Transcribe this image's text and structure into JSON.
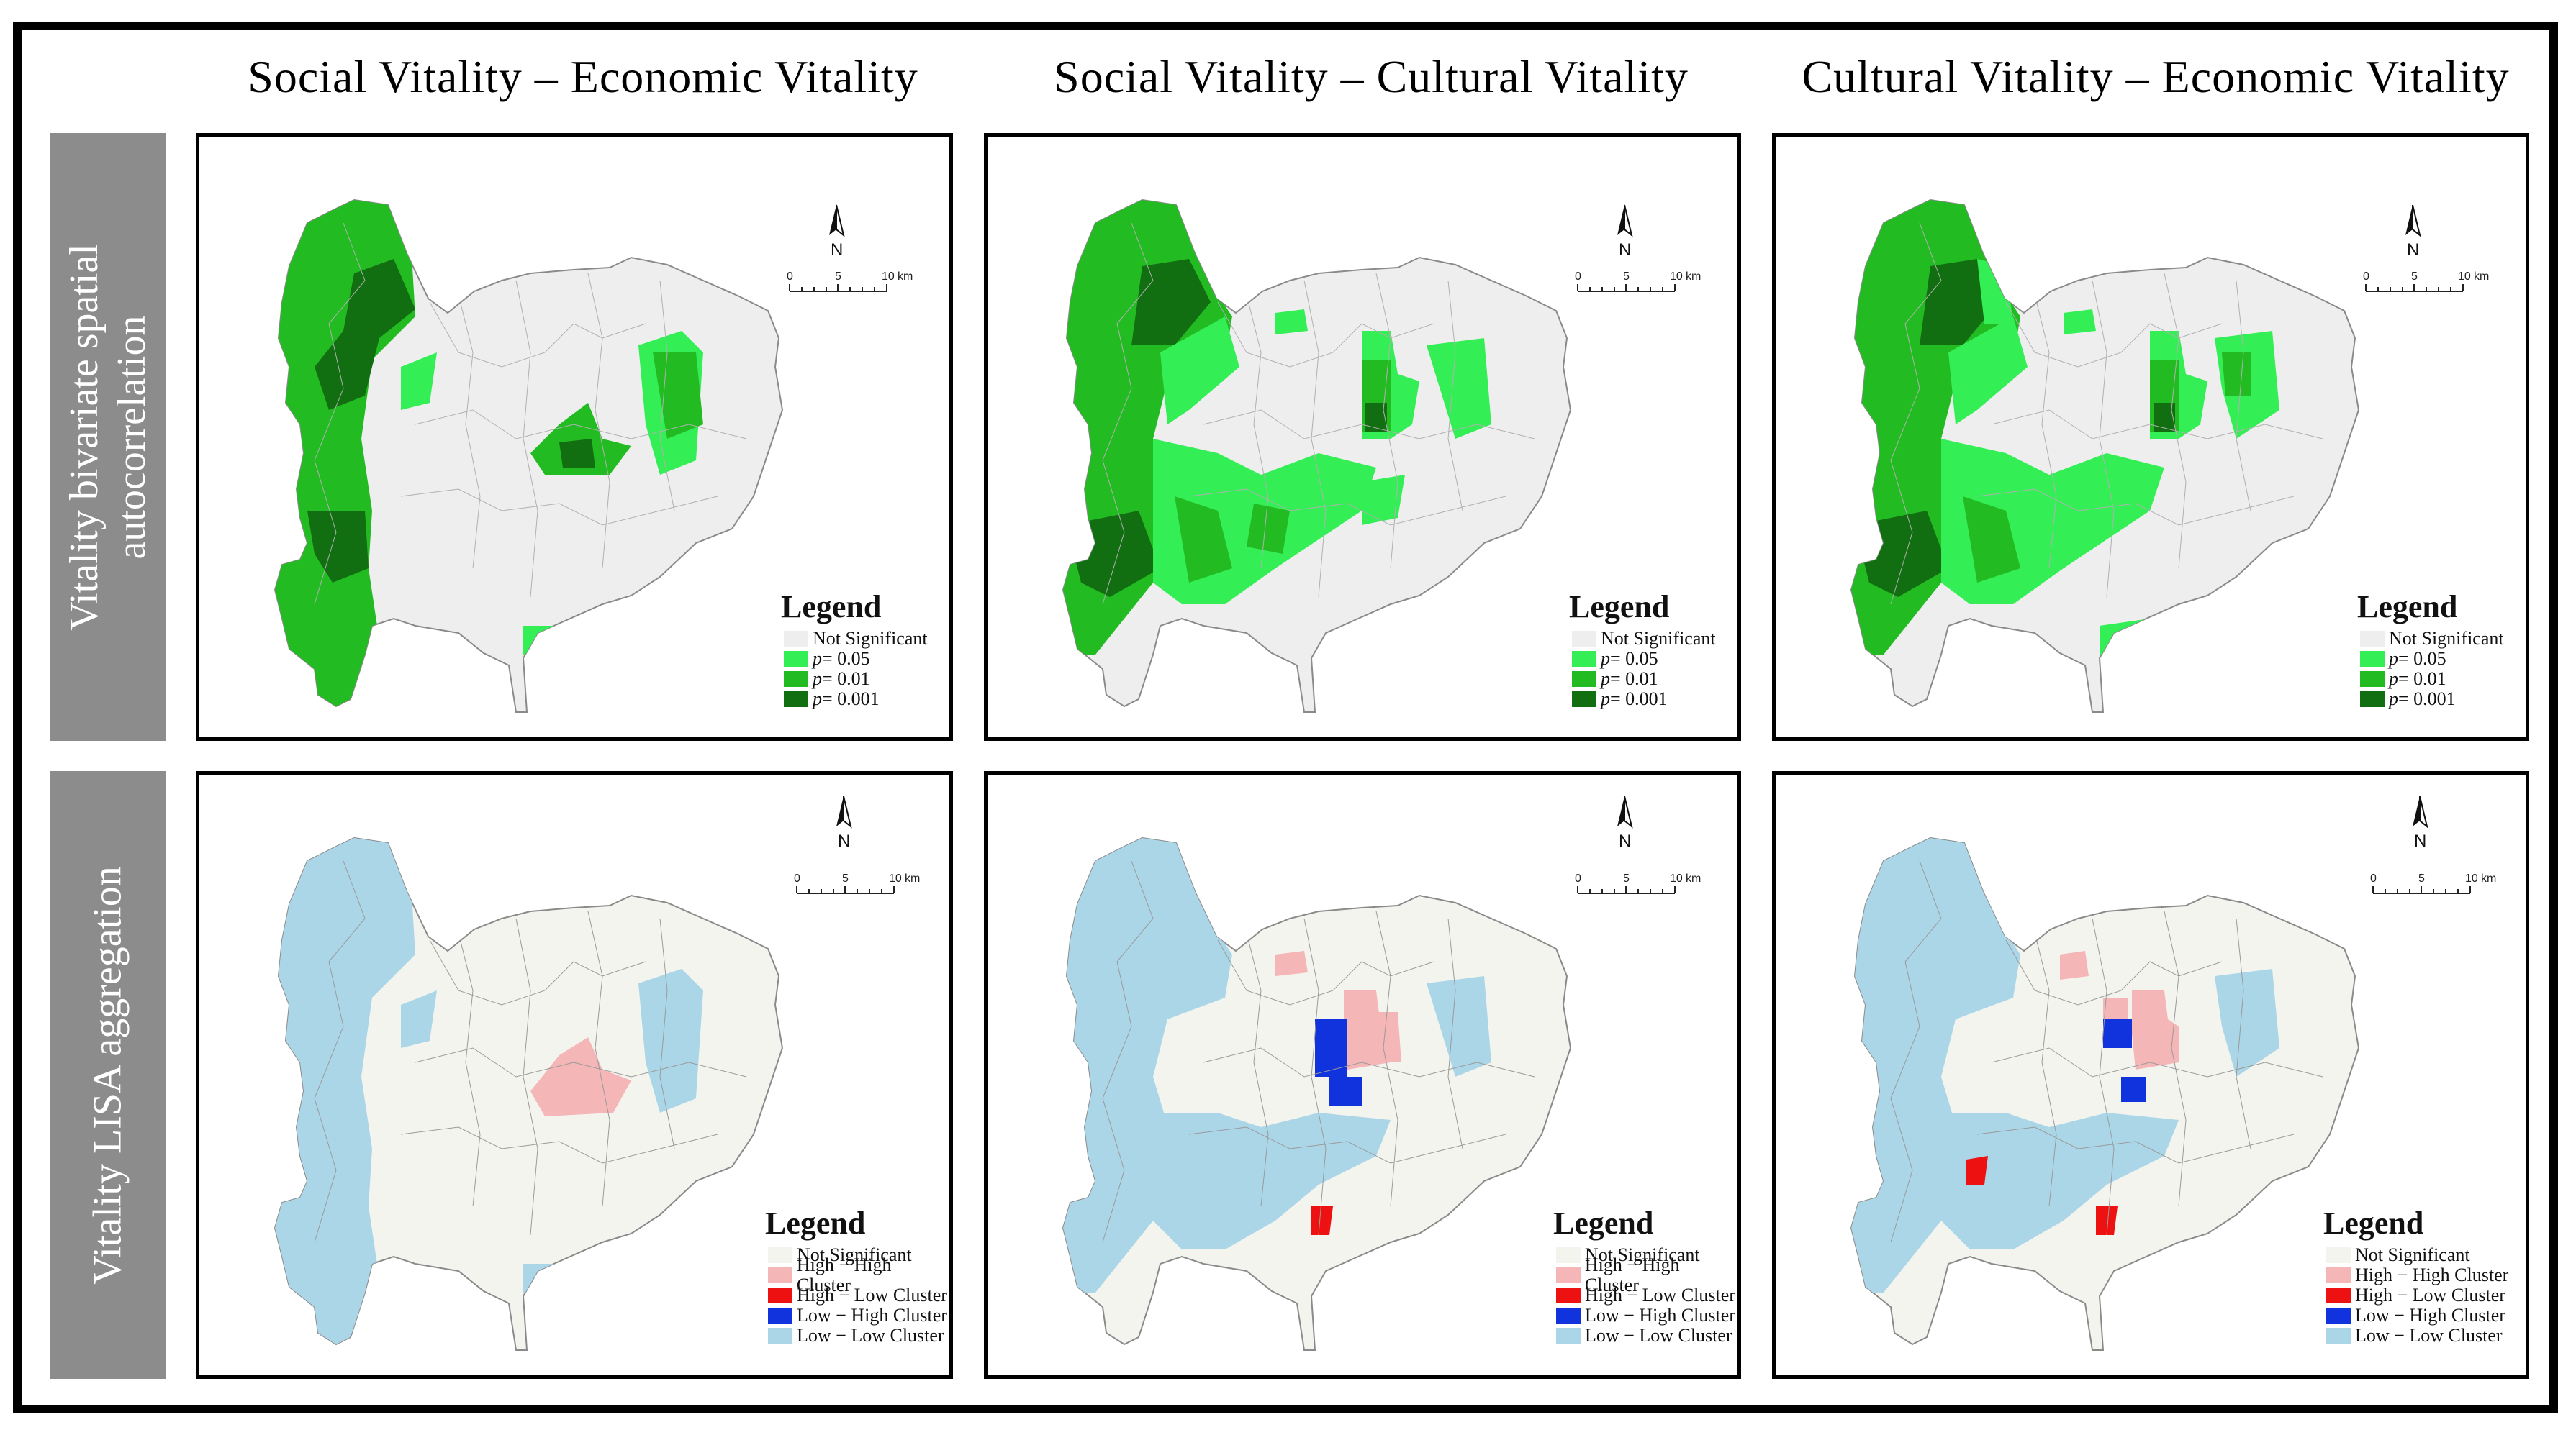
{
  "column_titles": [
    "Social Vitality – Economic Vitality",
    "Social Vitality – Cultural Vitality",
    "Cultural Vitality – Economic Vitality"
  ],
  "row_labels": {
    "row1_line1": "Vitality bivariate spatial",
    "row1_line2": "autocorrelation",
    "row2": "Vitality LISA aggregation"
  },
  "north_label": "N",
  "scale_bar": {
    "labels": [
      "0",
      "5",
      "10"
    ],
    "unit": "km"
  },
  "legend_title": "Legend",
  "bivariate_legend": [
    {
      "label": "Not Significant",
      "color": "#eeeeee"
    },
    {
      "prefix": "p",
      "label": " = 0.05",
      "color": "#33ee55"
    },
    {
      "prefix": "p",
      "label": " = 0.01",
      "color": "#22bb22"
    },
    {
      "prefix": "p",
      "label": " = 0.001",
      "color": "#116e11"
    }
  ],
  "lisa_legend": [
    {
      "label": "Not Significant",
      "color": "#f4f4ef"
    },
    {
      "label": "High − High Cluster",
      "color": "#f4b6b6"
    },
    {
      "label": "High − Low Cluster",
      "color": "#ee1111"
    },
    {
      "label": "Low − High Cluster",
      "color": "#1133dd"
    },
    {
      "label": "Low − Low Cluster",
      "color": "#abd6e8"
    }
  ],
  "colors": {
    "background_region": "#eeeeee",
    "lisa_background": "#f4f4ef",
    "boundary": "#8a8a8a",
    "label_box": "#8c8c8c"
  }
}
